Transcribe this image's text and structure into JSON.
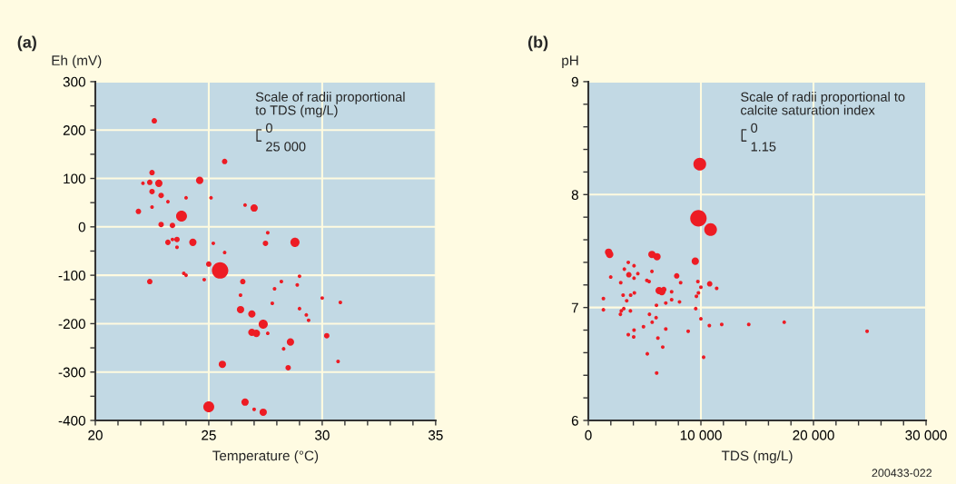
{
  "chart_data": [
    {
      "type": "bubble",
      "xlabel": "Temperature (°C)",
      "ylabel": "Eh (mV)",
      "annotations": [
        "(a)",
        "Scale of radii proportional\nto TDS (mg/L)",
        "0",
        "25 000"
      ],
      "xlim": [
        20,
        35
      ],
      "ylim": [
        -400,
        300
      ],
      "xticks": [
        20,
        {
          "value": 21,
          "label": null
        },
        {
          "value": 22,
          "label": null
        },
        {
          "value": 23,
          "label": null
        },
        {
          "value": 24,
          "label": null
        },
        25,
        {
          "value": 26,
          "label": null
        },
        {
          "value": 27,
          "label": null
        },
        {
          "value": 28,
          "label": null
        },
        {
          "value": 29,
          "label": null
        },
        30,
        {
          "value": 31,
          "label": null
        },
        {
          "value": 32,
          "label": null
        },
        {
          "value": 33,
          "label": null
        },
        {
          "value": 34,
          "label": null
        },
        35
      ],
      "yticks": [
        -400,
        {
          "value": -350,
          "label": null
        },
        -300,
        {
          "value": -250,
          "label": null
        },
        -200,
        {
          "value": -150,
          "label": null
        },
        -100,
        {
          "value": -50,
          "label": null
        },
        0,
        {
          "value": 50,
          "label": null
        },
        100,
        {
          "value": 150,
          "label": null
        },
        200,
        {
          "value": 250,
          "label": null
        },
        300
      ],
      "grid": true,
      "series": [
        {
          "color": "#ed1c24",
          "x": [
            22.6,
            22.5,
            22.1,
            22.4,
            22.8,
            22.5,
            22.9,
            23.2,
            24.0,
            24.6,
            21.9,
            22.5,
            23.8,
            22.9,
            23.4,
            23.2,
            23.4,
            23.6,
            23.6,
            24.3,
            25.2,
            25.7,
            25.5,
            25.0,
            23.9,
            24.0,
            24.8,
            22.4,
            25.1,
            25.7,
            26.6,
            27.0,
            27.6,
            27.5,
            28.8,
            26.5,
            26.4,
            26.4,
            26.9,
            27.4,
            26.9,
            27.1,
            27.6,
            27.9,
            28.2,
            27.8,
            29.0,
            28.9,
            29.0,
            29.3,
            29.4,
            28.6,
            28.3,
            28.5,
            30.0,
            30.2,
            30.8,
            30.7,
            25.6,
            25.0,
            26.6,
            27.0,
            27.4
          ],
          "values": [
            219,
            112,
            90,
            92,
            90,
            73,
            65,
            52,
            60,
            96,
            32,
            41,
            22,
            5,
            3,
            -32,
            -26,
            -26,
            -42,
            -32,
            -34,
            -53,
            -90,
            -77,
            -96,
            -100,
            -109,
            -113,
            60,
            135,
            45,
            39,
            -12,
            -34,
            -32,
            -113,
            -141,
            -171,
            -180,
            -201,
            -218,
            -220,
            -220,
            -128,
            -113,
            -158,
            -102,
            -120,
            -169,
            -182,
            -193,
            -238,
            -252,
            -291,
            -147,
            -225,
            -156,
            -278,
            -284,
            -372,
            -362,
            -377,
            -383
          ],
          "sizes": [
            0.11,
            0.11,
            0.05,
            0.11,
            0.2,
            0.11,
            0.11,
            0.05,
            0.05,
            0.2,
            0.11,
            0.05,
            0.44,
            0.11,
            0.11,
            0.11,
            0.05,
            0.11,
            0.05,
            0.2,
            0.05,
            0.05,
            1,
            0.11,
            0.05,
            0.05,
            0.05,
            0.11,
            0.05,
            0.11,
            0.05,
            0.2,
            0.05,
            0.11,
            0.31,
            0.11,
            0.05,
            0.2,
            0.2,
            0.31,
            0.2,
            0.2,
            0.05,
            0.05,
            0.05,
            0.05,
            0.05,
            0.05,
            0.05,
            0.05,
            0.05,
            0.2,
            0.05,
            0.11,
            0.05,
            0.11,
            0.05,
            0.05,
            0.2,
            0.44,
            0.2,
            0.05,
            0.2
          ]
        }
      ]
    },
    {
      "type": "bubble",
      "xlabel": "TDS (mg/L)",
      "ylabel": "pH",
      "annotations": [
        "(b)",
        "Scale of radii proportional to\ncalcite saturation index",
        "0",
        "1.15",
        "200433-022"
      ],
      "xlim": [
        0,
        30000
      ],
      "ylim": [
        6,
        9
      ],
      "xticks": [
        0,
        {
          "value": 2000,
          "label": null
        },
        {
          "value": 4000,
          "label": null
        },
        {
          "value": 6000,
          "label": null
        },
        {
          "value": 8000,
          "label": null
        },
        {
          "value": 10000,
          "label": "10 000"
        },
        {
          "value": 12000,
          "label": null
        },
        {
          "value": 14000,
          "label": null
        },
        {
          "value": 16000,
          "label": null
        },
        {
          "value": 18000,
          "label": null
        },
        {
          "value": 20000,
          "label": "20 000"
        },
        {
          "value": 22000,
          "label": null
        },
        {
          "value": 24000,
          "label": null
        },
        {
          "value": 26000,
          "label": null
        },
        {
          "value": 28000,
          "label": null
        },
        {
          "value": 30000,
          "label": "30 000"
        }
      ],
      "yticks": [
        6,
        {
          "value": 6.2,
          "label": null
        },
        {
          "value": 6.4,
          "label": null
        },
        {
          "value": 6.6,
          "label": null
        },
        {
          "value": 6.8,
          "label": null
        },
        7,
        {
          "value": 7.2,
          "label": null
        },
        {
          "value": 7.4,
          "label": null
        },
        {
          "value": 7.6,
          "label": null
        },
        {
          "value": 7.8,
          "label": null
        },
        8,
        {
          "value": 8.2,
          "label": null
        },
        {
          "value": 8.4,
          "label": null
        },
        {
          "value": 8.6,
          "label": null
        },
        {
          "value": 8.8,
          "label": null
        },
        9
      ],
      "grid": true,
      "series": [
        {
          "color": "#ed1c24",
          "x": [
            9900,
            9780,
            10860,
            1800,
            1900,
            5650,
            6100,
            9500,
            3550,
            4060,
            3200,
            3600,
            4400,
            4060,
            1990,
            2880,
            5650,
            5200,
            5400,
            7850,
            8200,
            9730,
            10780,
            11400,
            10000,
            6290,
            6530,
            6700,
            7400,
            7400,
            6880,
            6050,
            8100,
            9780,
            9600,
            9540,
            3090,
            3760,
            4090,
            3410,
            1340,
            1340,
            3150,
            2930,
            2850,
            3740,
            5430,
            6020,
            5670,
            4900,
            6880,
            4060,
            3550,
            4030,
            6180,
            8870,
            10000,
            10750,
            11850,
            14250,
            6610,
            5240,
            10240,
            6070,
            17400,
            24760
          ],
          "values": [
            8.27,
            7.79,
            7.69,
            7.49,
            7.47,
            7.47,
            7.45,
            7.41,
            7.4,
            7.37,
            7.34,
            7.29,
            7.3,
            7.26,
            7.27,
            7.22,
            7.32,
            7.24,
            7.23,
            7.28,
            7.22,
            7.23,
            7.21,
            7.17,
            7.18,
            7.15,
            7.14,
            7.16,
            7.14,
            7.07,
            7.04,
            7.02,
            7.05,
            7.13,
            7.1,
            6.99,
            7.11,
            7.11,
            7.13,
            7.06,
            7.08,
            6.98,
            6.99,
            6.97,
            6.94,
            6.97,
            6.94,
            6.91,
            6.87,
            6.83,
            6.81,
            6.8,
            6.76,
            6.74,
            6.73,
            6.79,
            6.9,
            6.84,
            6.85,
            6.85,
            6.65,
            6.59,
            6.56,
            6.42,
            6.87,
            6.79
          ],
          "sizes": [
            0.6,
            1,
            0.6,
            0.2,
            0.2,
            0.2,
            0.2,
            0.2,
            0.05,
            0.05,
            0.05,
            0.11,
            0.05,
            0.05,
            0.05,
            0.05,
            0.05,
            0.05,
            0.05,
            0.11,
            0.05,
            0.05,
            0.11,
            0.05,
            0.05,
            0.2,
            0.2,
            0.11,
            0.05,
            0.05,
            0.05,
            0.05,
            0.05,
            0.05,
            0.05,
            0.05,
            0.05,
            0.05,
            0.05,
            0.05,
            0.05,
            0.05,
            0.05,
            0.05,
            0.05,
            0.05,
            0.05,
            0.05,
            0.05,
            0.05,
            0.05,
            0.05,
            0.05,
            0.05,
            0.05,
            0.05,
            0.05,
            0.05,
            0.05,
            0.05,
            0.05,
            0.05,
            0.05,
            0.05,
            0.05,
            0.05
          ]
        }
      ]
    }
  ]
}
